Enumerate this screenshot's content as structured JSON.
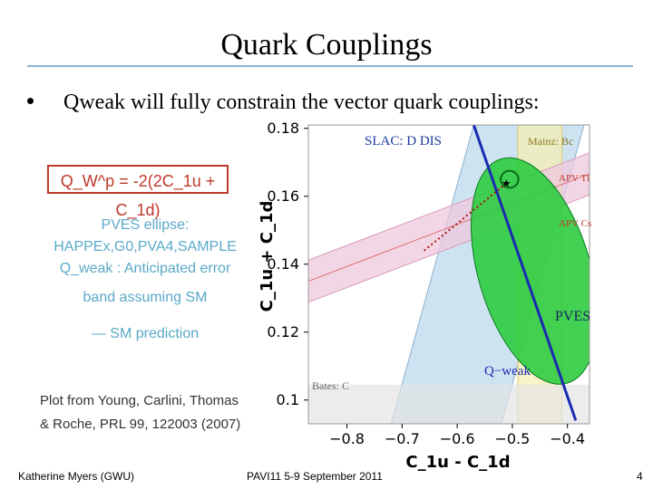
{
  "slide": {
    "title": "Quark Couplings",
    "bullet": "Qweak will fully constrain the vector quark couplings:"
  },
  "legend": {
    "formula": "Q_W^p = -2(2C_1u + C_1d)",
    "pves_label_1": "PVES ellipse:",
    "pves_label_2": "HAPPEx,G0,PVA4,SAMPLE",
    "qweak_label_1": "Q_weak : Anticipated error",
    "qweak_label_2": "band assuming SM",
    "sm_label": "— SM prediction",
    "reference_1": "Plot from Young, Carlini, Thomas",
    "reference_2": "& Roche, PRL 99, 122003 (2007)"
  },
  "footer": {
    "author": "Katherine Myers (GWU)",
    "conference": "PAVI11 5-9 September 2011",
    "page": "4"
  },
  "colors": {
    "title_rule": "#8ab4d8",
    "slac_band": "#b9d7ec",
    "mainz_band": "#f6efb4",
    "apv_band": "#efc8de",
    "pves_ellipse": "#2ecc40",
    "qweak_line": "#1a2bb0",
    "apv_label": "#c0392b",
    "legend_teal": "#5aa9c9",
    "formula_red": "#c0392b"
  },
  "chart_data": {
    "type": "scatter",
    "title": "",
    "xlabel": "C_1u - C_1d",
    "ylabel": "C_1u + C_1d",
    "xlim": [
      -0.87,
      -0.36
    ],
    "ylim": [
      0.093,
      0.181
    ],
    "x_ticks": [
      -0.8,
      -0.7,
      -0.6,
      -0.5,
      -0.4
    ],
    "x_tick_labels": [
      "−0.8",
      "−0.7",
      "−0.6",
      "−0.5",
      "−0.4"
    ],
    "y_ticks": [
      0.1,
      0.12,
      0.14,
      0.16,
      0.18
    ],
    "y_tick_labels": [
      "0.1",
      "0.12",
      "0.14",
      "0.16",
      "0.18"
    ],
    "grid": false,
    "annotations": {
      "slac": "SLAC: D DIS",
      "mainz": "Mainz: Bc",
      "apv_tl": "APV Tl",
      "apv_cs": "APV Cs",
      "pves": "PVES",
      "qweak": "Q−weak",
      "bates": "Bates: C"
    },
    "bands": [
      {
        "name": "SLAC: D DIS",
        "x1": [
          -0.72,
          -0.52
        ],
        "x2": [
          -0.57,
          -0.37
        ],
        "ylim": [
          0.093,
          0.181
        ]
      },
      {
        "name": "Mainz: Bc",
        "x": [
          -0.49,
          -0.41
        ]
      },
      {
        "name": "Bates: C",
        "y": [
          0.093,
          0.1045
        ]
      },
      {
        "name": "APV",
        "x": [
          -0.87,
          -0.36
        ],
        "y_center": [
          0.135,
          0.1666
        ],
        "half_width": 0.0062
      }
    ],
    "qweak_line": {
      "x": [
        -0.57,
        -0.385
      ],
      "y": [
        0.181,
        0.094
      ]
    },
    "pves_ellipse": {
      "center": [
        -0.46,
        0.137
      ],
      "tip1": [
        -0.52,
        0.171
      ],
      "tip2": [
        -0.4,
        0.105
      ],
      "minor_half": 0.0165
    },
    "sm_star": {
      "x": -0.511,
      "y": 0.1638
    },
    "sm_trail": {
      "x": [
        -0.66,
        -0.511
      ],
      "y": [
        0.144,
        0.1638
      ]
    },
    "apv_ellipse": {
      "center": [
        -0.505,
        0.165
      ],
      "rx": 0.016,
      "ry": 0.0025
    }
  }
}
